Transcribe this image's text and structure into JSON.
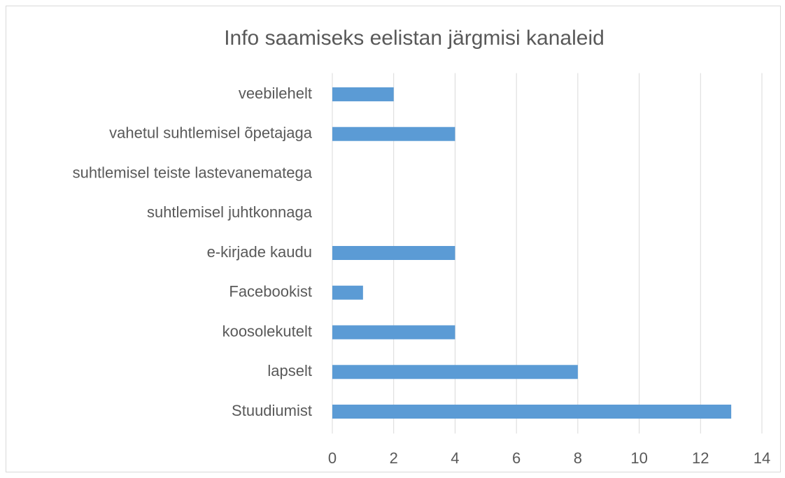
{
  "chart_data": {
    "type": "bar",
    "orientation": "horizontal",
    "title": "Info saamiseks eelistan järgmisi kanaleid",
    "categories": [
      "veebilehelt",
      "vahetul suhtlemisel õpetajaga",
      "suhtlemisel teiste lastevanematega",
      "suhtlemisel juhtkonnaga",
      "e-kirjade kaudu",
      "Facebookist",
      "koosolekutelt",
      "lapselt",
      "Stuudiumist"
    ],
    "values": [
      2,
      4,
      0,
      0,
      4,
      1,
      4,
      8,
      13
    ],
    "color": "#5b9bd5",
    "xlim": [
      0,
      14
    ],
    "xticks": [
      0,
      2,
      4,
      6,
      8,
      10,
      12,
      14
    ],
    "grid": true
  }
}
